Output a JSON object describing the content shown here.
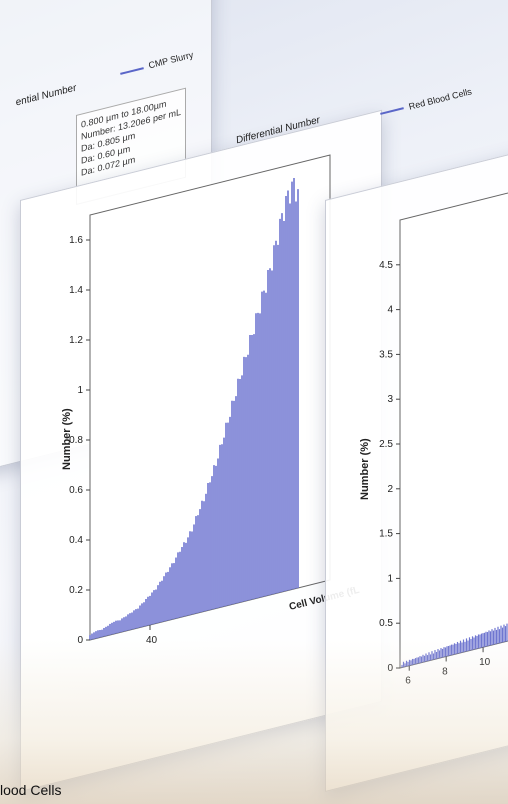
{
  "back_panel": {
    "title": "ential Number",
    "legend": "CMP Slurry",
    "stats": [
      "0.800 µm to 18.00µm",
      "Number: 13.20e6 per mL",
      "Da:    0.805 µm",
      "Da:    0.60 µm",
      "Da:    0.072 µm"
    ]
  },
  "mid_panel": {
    "title": "Differential Number",
    "legend": "Red Blood Cells",
    "ylabel": "Number (%)",
    "xlabel": "Cell Volume (fL",
    "yticks": [
      "0",
      "0.2",
      "0.4",
      "0.6",
      "0.8",
      "1",
      "1.2",
      "1.4",
      "1.6"
    ],
    "xticks": [
      "40"
    ]
  },
  "front_panel": {
    "ylabel": "Number (%)",
    "yticks": [
      "0",
      "0.5",
      "1",
      "1.5",
      "2",
      "2.5",
      "3",
      "3.5",
      "4",
      "4.5"
    ],
    "xticks": [
      "6",
      "8",
      "10"
    ]
  },
  "caption": "lood Cells",
  "colors": {
    "series": "#6f76d0",
    "series_edge": "#4b54b8"
  },
  "chart_data": [
    {
      "type": "bar",
      "title": "Differential Number",
      "xlabel": "Cell Volume (fL",
      "ylabel": "Number (%)",
      "series": [
        {
          "name": "Red Blood Cells"
        }
      ],
      "ylim": [
        0,
        1.7
      ],
      "x": [
        20,
        22,
        24,
        26,
        28,
        30,
        32,
        34,
        36,
        38,
        40,
        42,
        44,
        46,
        48,
        50,
        52,
        54,
        56,
        58,
        60,
        62,
        64,
        66,
        68,
        70,
        72,
        74,
        76,
        78,
        80,
        82,
        84,
        86,
        88,
        90
      ],
      "values": [
        0.02,
        0.03,
        0.03,
        0.04,
        0.05,
        0.05,
        0.06,
        0.07,
        0.08,
        0.1,
        0.12,
        0.14,
        0.17,
        0.2,
        0.23,
        0.27,
        0.3,
        0.34,
        0.4,
        0.45,
        0.52,
        0.58,
        0.66,
        0.74,
        0.82,
        0.9,
        0.98,
        1.06,
        1.14,
        1.22,
        1.3,
        1.4,
        1.5,
        1.58,
        1.62,
        1.55
      ]
    }
  ]
}
